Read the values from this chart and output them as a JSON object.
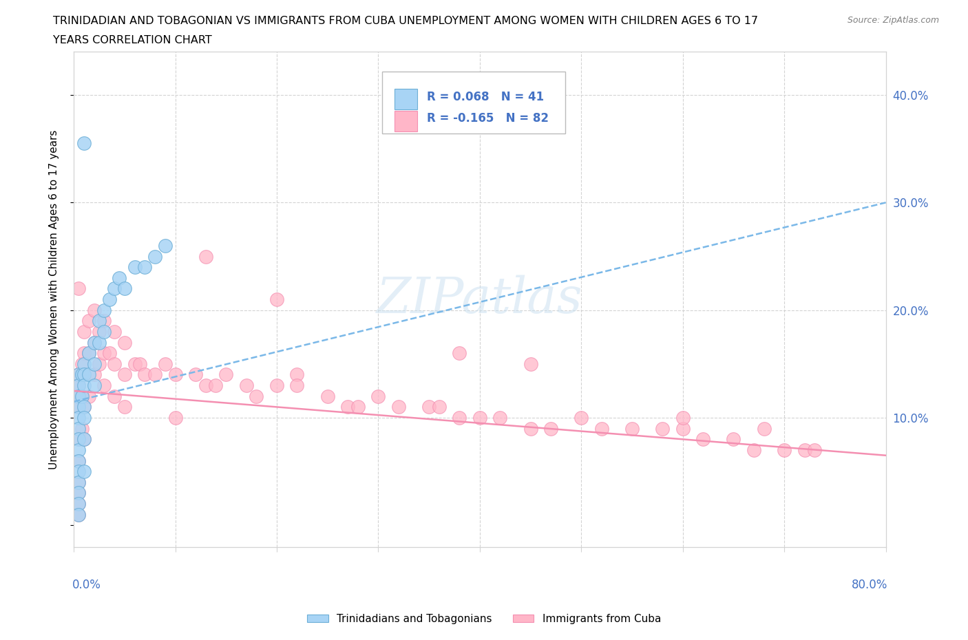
{
  "title_line1": "TRINIDADIAN AND TOBAGONIAN VS IMMIGRANTS FROM CUBA UNEMPLOYMENT AMONG WOMEN WITH CHILDREN AGES 6 TO 17",
  "title_line2": "YEARS CORRELATION CHART",
  "source": "Source: ZipAtlas.com",
  "ylabel": "Unemployment Among Women with Children Ages 6 to 17 years",
  "xlim": [
    0.0,
    0.8
  ],
  "ylim": [
    -0.02,
    0.44
  ],
  "ytick_vals": [
    0.0,
    0.1,
    0.2,
    0.3,
    0.4
  ],
  "ytick_labels": [
    "",
    "10.0%",
    "20.0%",
    "30.0%",
    "40.0%"
  ],
  "xtick_vals": [
    0.0,
    0.1,
    0.2,
    0.3,
    0.4,
    0.5,
    0.6,
    0.7,
    0.8
  ],
  "blue_face": "#a8d4f5",
  "blue_edge": "#6baed6",
  "pink_face": "#ffb6c8",
  "pink_edge": "#f48fb1",
  "blue_line_color": "#7ab8e8",
  "pink_line_color": "#f48fb1",
  "label_color": "#4472c4",
  "watermark": "ZIPatlas",
  "trin_x": [
    0.005,
    0.005,
    0.005,
    0.005,
    0.005,
    0.005,
    0.005,
    0.005,
    0.005,
    0.005,
    0.005,
    0.005,
    0.005,
    0.005,
    0.008,
    0.008,
    0.01,
    0.01,
    0.01,
    0.01,
    0.01,
    0.01,
    0.01,
    0.015,
    0.015,
    0.02,
    0.02,
    0.02,
    0.025,
    0.025,
    0.03,
    0.03,
    0.035,
    0.04,
    0.045,
    0.05,
    0.06,
    0.07,
    0.08,
    0.09,
    0.01
  ],
  "trin_y": [
    0.14,
    0.13,
    0.12,
    0.11,
    0.1,
    0.09,
    0.08,
    0.07,
    0.06,
    0.05,
    0.04,
    0.03,
    0.02,
    0.01,
    0.14,
    0.12,
    0.15,
    0.14,
    0.13,
    0.11,
    0.1,
    0.08,
    0.05,
    0.16,
    0.14,
    0.17,
    0.15,
    0.13,
    0.19,
    0.17,
    0.2,
    0.18,
    0.21,
    0.22,
    0.23,
    0.22,
    0.24,
    0.24,
    0.25,
    0.26,
    0.355
  ],
  "cuba_x": [
    0.005,
    0.005,
    0.005,
    0.005,
    0.005,
    0.005,
    0.008,
    0.008,
    0.008,
    0.01,
    0.01,
    0.01,
    0.01,
    0.01,
    0.015,
    0.015,
    0.015,
    0.02,
    0.02,
    0.02,
    0.025,
    0.025,
    0.03,
    0.03,
    0.03,
    0.035,
    0.04,
    0.04,
    0.04,
    0.05,
    0.05,
    0.05,
    0.06,
    0.065,
    0.07,
    0.08,
    0.09,
    0.1,
    0.1,
    0.12,
    0.13,
    0.14,
    0.15,
    0.17,
    0.18,
    0.2,
    0.22,
    0.22,
    0.25,
    0.27,
    0.28,
    0.3,
    0.32,
    0.35,
    0.36,
    0.38,
    0.4,
    0.42,
    0.45,
    0.47,
    0.5,
    0.52,
    0.55,
    0.58,
    0.6,
    0.62,
    0.65,
    0.67,
    0.68,
    0.7,
    0.72,
    0.73,
    0.005,
    0.13,
    0.2,
    0.38,
    0.45,
    0.6,
    0.005,
    0.005,
    0.005,
    0.005
  ],
  "cuba_y": [
    0.14,
    0.13,
    0.12,
    0.11,
    0.08,
    0.06,
    0.15,
    0.12,
    0.09,
    0.18,
    0.16,
    0.14,
    0.11,
    0.08,
    0.19,
    0.16,
    0.12,
    0.2,
    0.17,
    0.14,
    0.18,
    0.15,
    0.19,
    0.16,
    0.13,
    0.16,
    0.18,
    0.15,
    0.12,
    0.17,
    0.14,
    0.11,
    0.15,
    0.15,
    0.14,
    0.14,
    0.15,
    0.14,
    0.1,
    0.14,
    0.13,
    0.13,
    0.14,
    0.13,
    0.12,
    0.13,
    0.14,
    0.13,
    0.12,
    0.11,
    0.11,
    0.12,
    0.11,
    0.11,
    0.11,
    0.1,
    0.1,
    0.1,
    0.09,
    0.09,
    0.1,
    0.09,
    0.09,
    0.09,
    0.09,
    0.08,
    0.08,
    0.07,
    0.09,
    0.07,
    0.07,
    0.07,
    0.22,
    0.25,
    0.21,
    0.16,
    0.15,
    0.1,
    0.04,
    0.03,
    0.02,
    0.01
  ],
  "trin_line_x0": 0.0,
  "trin_line_y0": 0.115,
  "trin_line_x1": 0.8,
  "trin_line_y1": 0.3,
  "cuba_line_x0": 0.0,
  "cuba_line_y0": 0.125,
  "cuba_line_x1": 0.8,
  "cuba_line_y1": 0.065
}
